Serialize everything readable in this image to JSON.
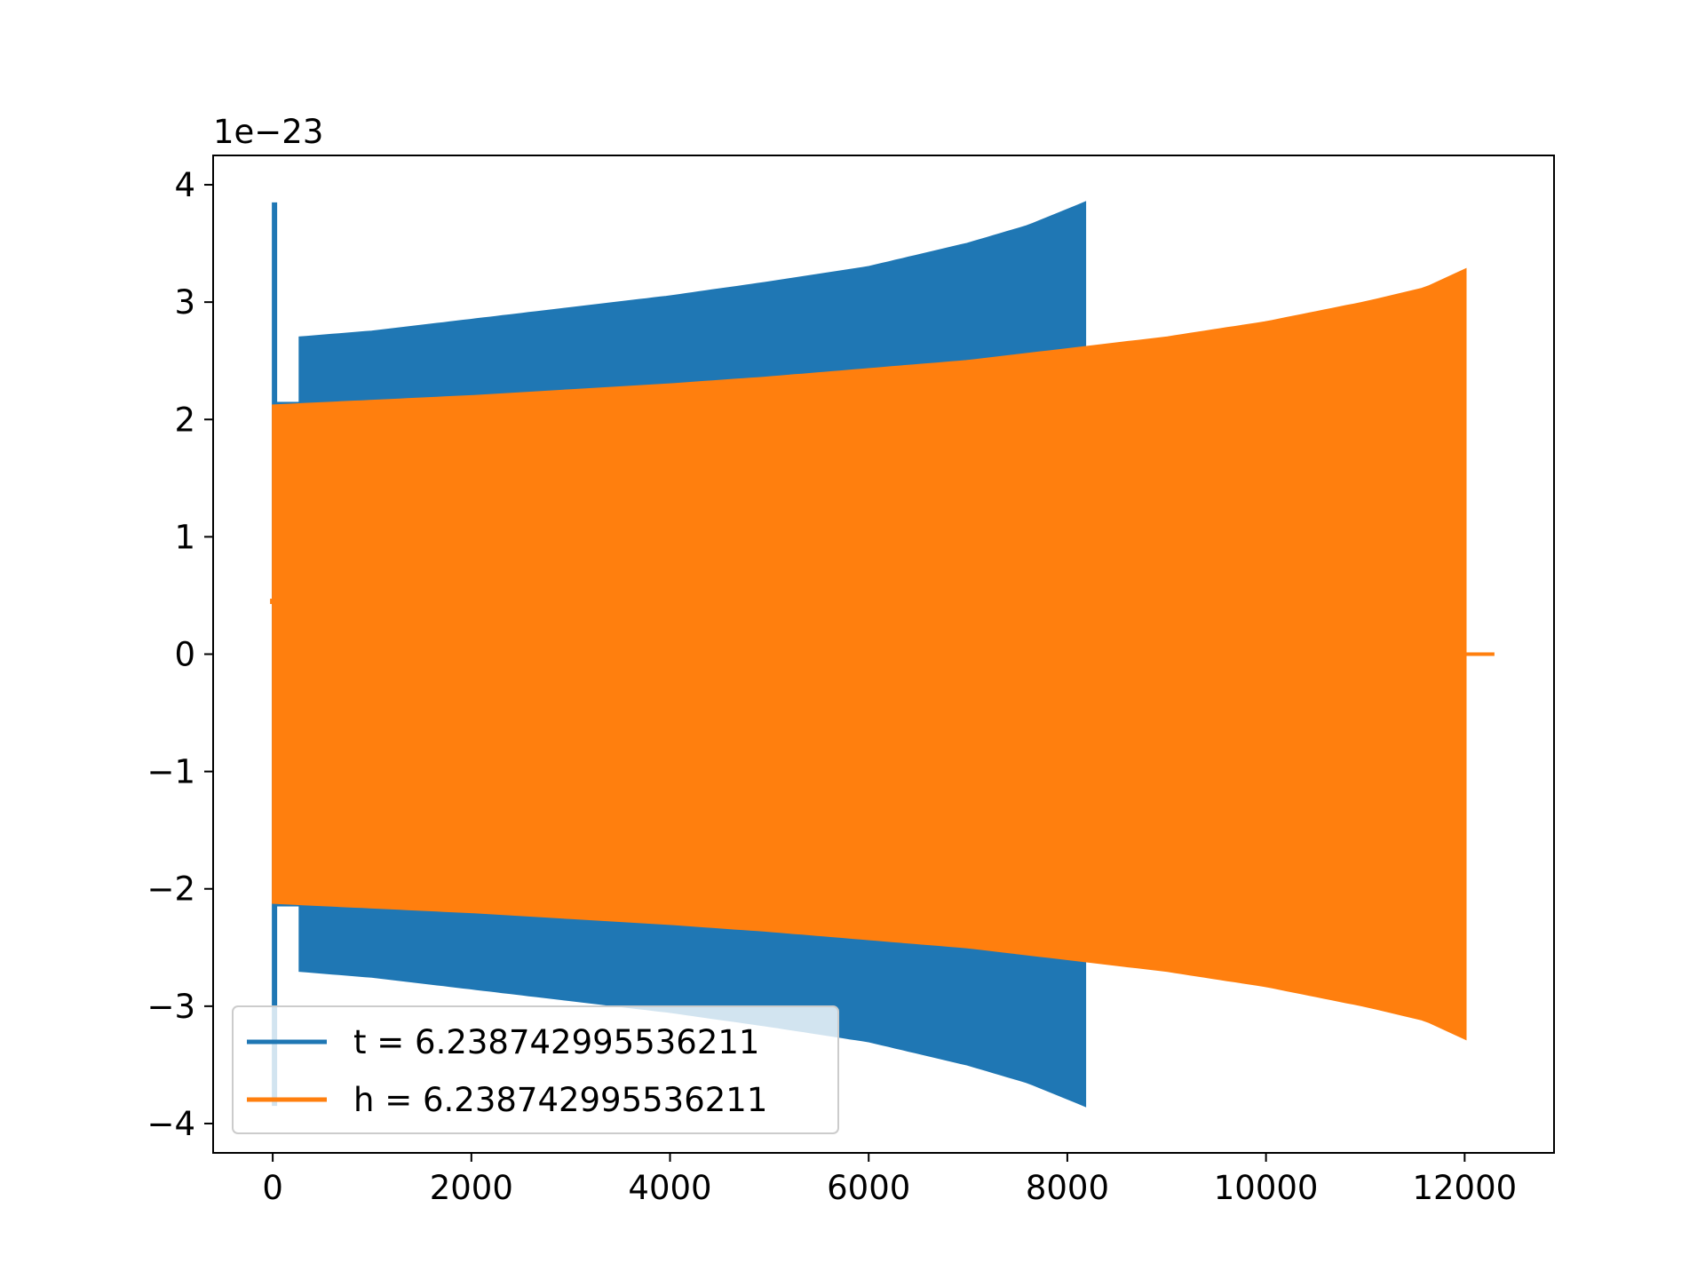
{
  "chart_data": {
    "type": "line",
    "title": "",
    "xlabel": "",
    "ylabel": "",
    "y_offset_label": "1e−23",
    "y_scale_factor": 1e-23,
    "xlim": [
      -600,
      12900
    ],
    "ylim": [
      -4.25,
      4.25
    ],
    "x_ticks": [
      0,
      2000,
      4000,
      6000,
      8000,
      10000,
      12000
    ],
    "x_tick_labels": [
      "0",
      "2000",
      "4000",
      "6000",
      "8000",
      "10000",
      "12000"
    ],
    "y_ticks": [
      4,
      3,
      2,
      1,
      0,
      -1,
      -2,
      -3,
      -4
    ],
    "y_tick_labels": [
      "4",
      "3",
      "2",
      "1",
      "0",
      "−1",
      "−2",
      "−3",
      "−4"
    ],
    "grid": false,
    "legend_position": "lower-left",
    "series": [
      {
        "name": "t = 6.238742995536211",
        "color": "#1f77b4",
        "spike": {
          "x": 0,
          "ymin": -3.85,
          "ymax": 3.85
        },
        "start_amplitude": 2.15,
        "gap_end_x": 270,
        "envelope": [
          [
            270,
            2.7
          ],
          [
            1000,
            2.75
          ],
          [
            2000,
            2.85
          ],
          [
            3000,
            2.95
          ],
          [
            4000,
            3.05
          ],
          [
            5000,
            3.17
          ],
          [
            6000,
            3.3
          ],
          [
            7000,
            3.5
          ],
          [
            7600,
            3.65
          ],
          [
            8180,
            3.85
          ]
        ]
      },
      {
        "name": "h = 6.238742995536211",
        "color": "#ff7f0e",
        "start_value": 0.45,
        "envelope": [
          [
            0,
            2.12
          ],
          [
            1000,
            2.16
          ],
          [
            2000,
            2.2
          ],
          [
            3000,
            2.25
          ],
          [
            4000,
            2.3
          ],
          [
            5000,
            2.36
          ],
          [
            6000,
            2.43
          ],
          [
            7000,
            2.5
          ],
          [
            8000,
            2.6
          ],
          [
            9000,
            2.7
          ],
          [
            10000,
            2.83
          ],
          [
            11000,
            3.0
          ],
          [
            11600,
            3.12
          ],
          [
            12010,
            3.28
          ]
        ],
        "tail": {
          "x_start": 12010,
          "x_end": 12300,
          "y": 0
        }
      }
    ]
  }
}
